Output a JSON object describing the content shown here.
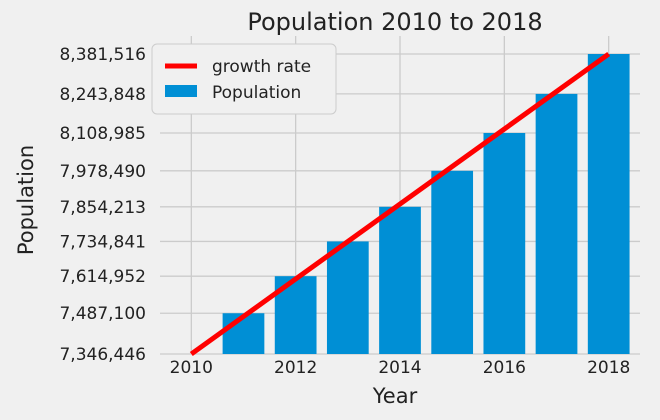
{
  "chart_data": {
    "type": "bar",
    "title": "Population 2010 to 2018",
    "xlabel": "Year",
    "ylabel": "Population",
    "x_ticks": [
      2010,
      2012,
      2014,
      2016,
      2018
    ],
    "y_ticks": [
      7346446,
      7487100,
      7614952,
      7734841,
      7854213,
      7978490,
      8108985,
      8243848,
      8381516
    ],
    "y_tick_labels": [
      "7,346,446",
      "7,487,100",
      "7,614,952",
      "7,734,841",
      "7,854,213",
      "7,978,490",
      "8,108,985",
      "8,243,848",
      "8,381,516"
    ],
    "xlim": [
      2009.4,
      2018.6
    ],
    "ylim": [
      7346446,
      8381516
    ],
    "grid": true,
    "legend_position": "top-left",
    "series": [
      {
        "name": "Population",
        "kind": "bar",
        "color": "#008fd5",
        "x": [
          2010,
          2011,
          2012,
          2013,
          2014,
          2015,
          2016,
          2017,
          2018
        ],
        "values": [
          7346446,
          7487100,
          7614952,
          7734841,
          7854213,
          7978490,
          8108985,
          8243848,
          8381516
        ]
      },
      {
        "name": "growth rate",
        "kind": "line",
        "color": "#ff0000",
        "x": [
          2010,
          2018
        ],
        "values": [
          7346446,
          8381516
        ]
      }
    ]
  }
}
